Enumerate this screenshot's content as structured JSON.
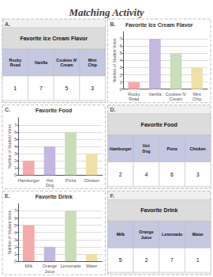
{
  "title": "Matching Activity",
  "chart_data": [
    {
      "type": "table",
      "annotations": [
        "A."
      ],
      "title": "Favorite Ice Cream Flavor",
      "categories": [
        "Rocky\nRoad",
        "Vanilla",
        "Cookies N'\nCream",
        "Mint\nChip"
      ],
      "values": [
        1,
        7,
        5,
        3
      ],
      "color": "#C4C8E0"
    },
    {
      "type": "bar",
      "annotations": [
        "B."
      ],
      "title": "Favorite Ice Cream Flavor",
      "categories": [
        "Rocky\nRoad",
        "Vanilla",
        "Cookies N'\nCream",
        "Mint\nChip"
      ],
      "values": [
        1,
        7,
        5,
        3
      ],
      "colors": [
        "#F4AAAA",
        "#C4B8E0",
        "#C8DDB8",
        "#F0E0A8"
      ],
      "ylabel": "Number of Student Votes",
      "ylim": [
        0,
        8
      ],
      "yticks": [
        0,
        1,
        2,
        3,
        4,
        5,
        6,
        7
      ],
      "grid": true
    },
    {
      "type": "bar",
      "annotations": [
        "C."
      ],
      "title": "Favorite Food",
      "categories": [
        "Hamburger",
        "Hot\nDog",
        "Pizza",
        "Chicken"
      ],
      "values": [
        2,
        4,
        6,
        3
      ],
      "colors": [
        "#F4AAAA",
        "#C4B8E0",
        "#C8DDB8",
        "#F0E0A8"
      ],
      "ylabel": "Number of Student Votes",
      "ylim": [
        0,
        8
      ],
      "yticks": [
        0,
        1,
        2,
        3,
        4,
        5,
        6,
        7
      ],
      "grid": true
    },
    {
      "type": "table",
      "annotations": [
        "D."
      ],
      "title": "Favorite Food",
      "categories": [
        "Hamburger",
        "Hot\nDog",
        "Pizza",
        "Chicken"
      ],
      "values": [
        2,
        4,
        6,
        3
      ],
      "color": "#C4C8E0"
    },
    {
      "type": "bar",
      "annotations": [
        "E."
      ],
      "title": "Favorite Drink",
      "categories": [
        "Milk",
        "Orange\nJuice",
        "Lemonade",
        "Water"
      ],
      "values": [
        5,
        2,
        7,
        1
      ],
      "colors": [
        "#F4AAAA",
        "#C4B8E0",
        "#C8DDB8",
        "#F0E0A8"
      ],
      "ylabel": "Number of Student Votes",
      "ylim": [
        0,
        8
      ],
      "yticks": [
        0,
        1,
        2,
        3,
        4,
        5,
        6,
        7
      ],
      "grid": true
    },
    {
      "type": "table",
      "annotations": [
        "F."
      ],
      "title": "Favorite Drink",
      "categories": [
        "Milk",
        "Orange\nJuice",
        "Lemonade",
        "Water"
      ],
      "values": [
        5,
        2,
        7,
        1
      ],
      "color": "#C4C8E0"
    }
  ]
}
